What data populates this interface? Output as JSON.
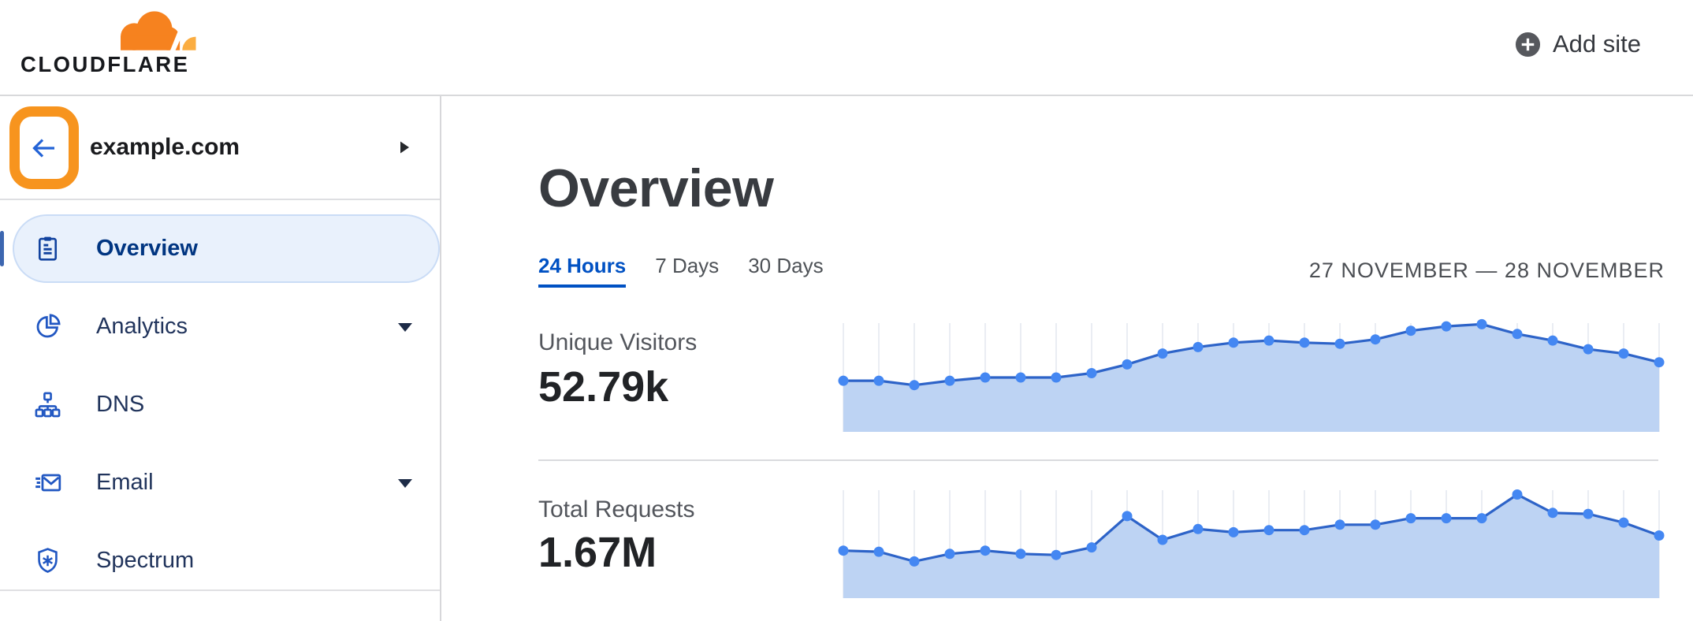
{
  "header": {
    "logo": {
      "wordmark": "CLOUDFLARE"
    },
    "add_site": {
      "label": "Add site"
    }
  },
  "sidebar": {
    "site": {
      "name": "example.com"
    },
    "items": [
      {
        "label": "Overview",
        "icon": "clipboard-icon",
        "selected": true,
        "expandable": false
      },
      {
        "label": "Analytics",
        "icon": "pie-chart-icon",
        "selected": false,
        "expandable": true
      },
      {
        "label": "DNS",
        "icon": "network-tree-icon",
        "selected": false,
        "expandable": false
      },
      {
        "label": "Email",
        "icon": "envelope-icon",
        "selected": false,
        "expandable": true
      },
      {
        "label": "Spectrum",
        "icon": "shield-icon",
        "selected": false,
        "expandable": false
      }
    ]
  },
  "main": {
    "title": "Overview",
    "time_tabs": [
      {
        "label": "24 Hours",
        "active": true
      },
      {
        "label": "7 Days",
        "active": false
      },
      {
        "label": "30 Days",
        "active": false
      }
    ],
    "date_range": "27 NOVEMBER — 28 NOVEMBER"
  },
  "chart_data": [
    {
      "type": "area",
      "title": "Unique Visitors",
      "total": "52.79k",
      "x_axis": "24 hourly points, 27 Nov – 28 Nov (ticks unlabeled)",
      "ylim": [
        0,
        100
      ],
      "grid": "vertical-line-per-point",
      "legend": false,
      "values_pct_of_chart_height": [
        47,
        47,
        43,
        47,
        50,
        50,
        50,
        54,
        62,
        72,
        78,
        82,
        84,
        82,
        81,
        85,
        93,
        97,
        99,
        90,
        84,
        76,
        72,
        64
      ]
    },
    {
      "type": "area",
      "title": "Total Requests",
      "total": "1.67M",
      "x_axis": "24 hourly points, 27 Nov – 28 Nov (ticks unlabeled)",
      "ylim": [
        0,
        100
      ],
      "grid": "vertical-line-per-point",
      "legend": false,
      "values_pct_of_chart_height": [
        44,
        43,
        34,
        41,
        44,
        41,
        40,
        47,
        76,
        54,
        64,
        61,
        63,
        63,
        68,
        68,
        74,
        74,
        74,
        96,
        79,
        78,
        70,
        58
      ]
    }
  ],
  "colors": {
    "brand_orange": "#f6821f",
    "brand_orange_light": "#fbad41",
    "annotation_highlight": "#f7941e",
    "link_blue": "#0051c3",
    "nav_icon_blue": "#2157c2",
    "nav_selected_bg": "#e9f1fc",
    "chart_fill": "#bdd3f3",
    "chart_line": "#2d63c8",
    "chart_dot": "#4487f2",
    "chart_grid": "#eaedf3",
    "divider_gray": "#dadbde",
    "text_dark": "#36393f",
    "text_gray": "#53565c"
  }
}
